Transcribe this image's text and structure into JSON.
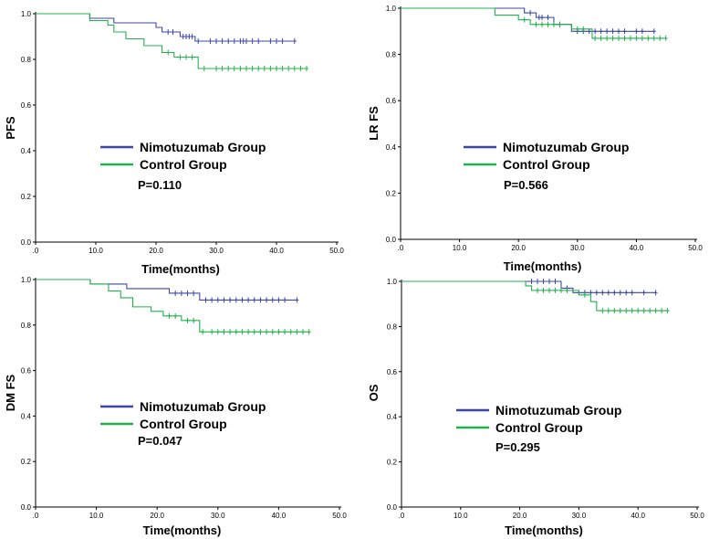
{
  "colors": {
    "nimotuzumab": "#3b47a8",
    "control": "#22b24c",
    "axis": "#000000"
  },
  "chart_data": [
    {
      "type": "line",
      "ylabel": "PFS",
      "xlabel": "Time(months)",
      "xlim": [
        0,
        50
      ],
      "ylim": [
        0,
        1
      ],
      "x_ticks": [
        ".0",
        "10.0",
        "20.0",
        "30.0",
        "40.0",
        "50.0"
      ],
      "y_ticks": [
        "0.0",
        "0.2",
        "0.4",
        "0.6",
        "0.8",
        "1.0"
      ],
      "legend": [
        "Nimotuzumab Group",
        "Control Group"
      ],
      "p_value": "P=0.110",
      "series": [
        {
          "name": "Nimotuzumab Group",
          "color_key": "nimotuzumab",
          "steps": [
            [
              0,
              1.0
            ],
            [
              9,
              0.98
            ],
            [
              13,
              0.96
            ],
            [
              20,
              0.94
            ],
            [
              21,
              0.92
            ],
            [
              24,
              0.9
            ],
            [
              26.5,
              0.88
            ]
          ],
          "end": 43,
          "censors": [
            [
              22,
              0.92
            ],
            [
              22.8,
              0.92
            ],
            [
              24.5,
              0.9
            ],
            [
              25,
              0.9
            ],
            [
              25.5,
              0.9
            ],
            [
              26,
              0.9
            ],
            [
              27,
              0.88
            ],
            [
              29,
              0.88
            ],
            [
              30,
              0.88
            ],
            [
              31,
              0.88
            ],
            [
              32,
              0.88
            ],
            [
              33,
              0.88
            ],
            [
              34,
              0.88
            ],
            [
              34.5,
              0.88
            ],
            [
              35,
              0.88
            ],
            [
              36,
              0.88
            ],
            [
              37,
              0.88
            ],
            [
              39,
              0.88
            ],
            [
              40,
              0.88
            ],
            [
              41,
              0.88
            ],
            [
              43,
              0.88
            ]
          ]
        },
        {
          "name": "Control Group",
          "color_key": "control",
          "steps": [
            [
              0,
              1.0
            ],
            [
              9,
              0.97
            ],
            [
              12,
              0.95
            ],
            [
              13,
              0.92
            ],
            [
              15,
              0.89
            ],
            [
              18,
              0.86
            ],
            [
              21,
              0.83
            ],
            [
              23,
              0.81
            ],
            [
              27,
              0.76
            ]
          ],
          "end": 45,
          "censors": [
            [
              22,
              0.83
            ],
            [
              24,
              0.81
            ],
            [
              25,
              0.81
            ],
            [
              26,
              0.81
            ],
            [
              28,
              0.76
            ],
            [
              30,
              0.76
            ],
            [
              31,
              0.76
            ],
            [
              32,
              0.76
            ],
            [
              33,
              0.76
            ],
            [
              34,
              0.76
            ],
            [
              35,
              0.76
            ],
            [
              36,
              0.76
            ],
            [
              37,
              0.76
            ],
            [
              38,
              0.76
            ],
            [
              39,
              0.76
            ],
            [
              40,
              0.76
            ],
            [
              41,
              0.76
            ],
            [
              42,
              0.76
            ],
            [
              43,
              0.76
            ],
            [
              44,
              0.76
            ],
            [
              45,
              0.76
            ]
          ]
        }
      ]
    },
    {
      "type": "line",
      "ylabel": "LR FS",
      "xlabel": "Time(months)",
      "xlim": [
        0,
        50
      ],
      "ylim": [
        0,
        1
      ],
      "x_ticks": [
        ".0",
        "10.0",
        "20.0",
        "30.0",
        "40.0",
        "50.0"
      ],
      "y_ticks": [
        "0.0",
        "0.2",
        "0.4",
        "0.6",
        "0.8",
        "1.0"
      ],
      "legend": [
        "Nimotuzumab Group",
        "Control Group"
      ],
      "p_value": "P=0.566",
      "series": [
        {
          "name": "Nimotuzumab Group",
          "color_key": "nimotuzumab",
          "steps": [
            [
              0,
              1.0
            ],
            [
              21,
              0.98
            ],
            [
              23,
              0.96
            ],
            [
              26,
              0.93
            ],
            [
              29,
              0.9
            ]
          ],
          "end": 43,
          "censors": [
            [
              22,
              0.98
            ],
            [
              23.5,
              0.96
            ],
            [
              24,
              0.96
            ],
            [
              25,
              0.96
            ],
            [
              27,
              0.93
            ],
            [
              30,
              0.9
            ],
            [
              31,
              0.9
            ],
            [
              32,
              0.9
            ],
            [
              33,
              0.9
            ],
            [
              34,
              0.9
            ],
            [
              35,
              0.9
            ],
            [
              36,
              0.9
            ],
            [
              37,
              0.9
            ],
            [
              38,
              0.9
            ],
            [
              40,
              0.9
            ],
            [
              41,
              0.9
            ],
            [
              43,
              0.9
            ]
          ]
        },
        {
          "name": "Control Group",
          "color_key": "control",
          "steps": [
            [
              0,
              1.0
            ],
            [
              16,
              0.97
            ],
            [
              20,
              0.95
            ],
            [
              22,
              0.93
            ],
            [
              29,
              0.91
            ],
            [
              32.5,
              0.87
            ]
          ],
          "end": 45,
          "censors": [
            [
              21,
              0.95
            ],
            [
              23,
              0.93
            ],
            [
              24,
              0.93
            ],
            [
              25,
              0.93
            ],
            [
              26,
              0.93
            ],
            [
              27,
              0.93
            ],
            [
              30,
              0.91
            ],
            [
              31,
              0.91
            ],
            [
              33,
              0.87
            ],
            [
              34,
              0.87
            ],
            [
              35,
              0.87
            ],
            [
              36,
              0.87
            ],
            [
              37,
              0.87
            ],
            [
              38,
              0.87
            ],
            [
              39,
              0.87
            ],
            [
              40,
              0.87
            ],
            [
              41,
              0.87
            ],
            [
              42,
              0.87
            ],
            [
              43,
              0.87
            ],
            [
              44,
              0.87
            ],
            [
              45,
              0.87
            ]
          ]
        }
      ]
    },
    {
      "type": "line",
      "ylabel": "DM FS",
      "xlabel": "Time(months)",
      "xlim": [
        0,
        50
      ],
      "ylim": [
        0,
        1
      ],
      "x_ticks": [
        ".0",
        "10.0",
        "20.0",
        "30.0",
        "40.0",
        "50.0"
      ],
      "y_ticks": [
        "0.0",
        "0.2",
        "0.4",
        "0.6",
        "0.8",
        "1.0"
      ],
      "legend": [
        "Nimotuzumab Group",
        "Control Group"
      ],
      "p_value": "P=0.047",
      "series": [
        {
          "name": "Nimotuzumab Group",
          "color_key": "nimotuzumab",
          "steps": [
            [
              0,
              1.0
            ],
            [
              9,
              0.98
            ],
            [
              15,
              0.96
            ],
            [
              22,
              0.94
            ],
            [
              27,
              0.91
            ]
          ],
          "end": 43,
          "censors": [
            [
              23,
              0.94
            ],
            [
              24,
              0.94
            ],
            [
              25,
              0.94
            ],
            [
              26,
              0.94
            ],
            [
              28,
              0.91
            ],
            [
              29,
              0.91
            ],
            [
              30,
              0.91
            ],
            [
              31,
              0.91
            ],
            [
              32,
              0.91
            ],
            [
              33,
              0.91
            ],
            [
              34,
              0.91
            ],
            [
              35,
              0.91
            ],
            [
              36,
              0.91
            ],
            [
              37,
              0.91
            ],
            [
              38,
              0.91
            ],
            [
              39,
              0.91
            ],
            [
              40,
              0.91
            ],
            [
              41,
              0.91
            ],
            [
              43,
              0.91
            ]
          ]
        },
        {
          "name": "Control Group",
          "color_key": "control",
          "steps": [
            [
              0,
              1.0
            ],
            [
              9,
              0.98
            ],
            [
              12,
              0.95
            ],
            [
              14,
              0.92
            ],
            [
              16,
              0.88
            ],
            [
              19,
              0.86
            ],
            [
              21,
              0.84
            ],
            [
              24,
              0.82
            ],
            [
              27,
              0.77
            ]
          ],
          "end": 45,
          "censors": [
            [
              22,
              0.84
            ],
            [
              23,
              0.84
            ],
            [
              25,
              0.82
            ],
            [
              26,
              0.82
            ],
            [
              27.5,
              0.77
            ],
            [
              29,
              0.77
            ],
            [
              30,
              0.77
            ],
            [
              31,
              0.77
            ],
            [
              32,
              0.77
            ],
            [
              33,
              0.77
            ],
            [
              34,
              0.77
            ],
            [
              35,
              0.77
            ],
            [
              36,
              0.77
            ],
            [
              37,
              0.77
            ],
            [
              38,
              0.77
            ],
            [
              39,
              0.77
            ],
            [
              40,
              0.77
            ],
            [
              41,
              0.77
            ],
            [
              42,
              0.77
            ],
            [
              43,
              0.77
            ],
            [
              44,
              0.77
            ],
            [
              45,
              0.77
            ]
          ]
        }
      ]
    },
    {
      "type": "line",
      "ylabel": "OS",
      "xlabel": "Time(months)",
      "xlim": [
        0,
        50
      ],
      "ylim": [
        0,
        1
      ],
      "x_ticks": [
        ".0",
        "10.0",
        "20.0",
        "30.0",
        "40.0",
        "50.0"
      ],
      "y_ticks": [
        "0.0",
        "0.2",
        "0.4",
        "0.6",
        "0.8",
        "1.0"
      ],
      "legend": [
        "Nimotuzumab Group",
        "Control Group"
      ],
      "p_value": "P=0.295",
      "series": [
        {
          "name": "Nimotuzumab Group",
          "color_key": "nimotuzumab",
          "steps": [
            [
              0,
              1.0
            ],
            [
              27,
              0.97
            ],
            [
              29,
              0.95
            ]
          ],
          "end": 43,
          "censors": [
            [
              22,
              1.0
            ],
            [
              23,
              1.0
            ],
            [
              24,
              1.0
            ],
            [
              25,
              1.0
            ],
            [
              26,
              1.0
            ],
            [
              28,
              0.97
            ],
            [
              30,
              0.95
            ],
            [
              31,
              0.95
            ],
            [
              32,
              0.95
            ],
            [
              33,
              0.95
            ],
            [
              34,
              0.95
            ],
            [
              35,
              0.95
            ],
            [
              36,
              0.95
            ],
            [
              37,
              0.95
            ],
            [
              38,
              0.95
            ],
            [
              39,
              0.95
            ],
            [
              41,
              0.95
            ],
            [
              43,
              0.95
            ]
          ]
        },
        {
          "name": "Control Group",
          "color_key": "control",
          "steps": [
            [
              0,
              1.0
            ],
            [
              21,
              0.98
            ],
            [
              22,
              0.96
            ],
            [
              30,
              0.94
            ],
            [
              32,
              0.91
            ],
            [
              33,
              0.87
            ]
          ],
          "end": 45,
          "censors": [
            [
              23,
              0.96
            ],
            [
              24,
              0.96
            ],
            [
              25,
              0.96
            ],
            [
              26,
              0.96
            ],
            [
              27,
              0.96
            ],
            [
              28,
              0.96
            ],
            [
              31,
              0.94
            ],
            [
              34,
              0.87
            ],
            [
              35,
              0.87
            ],
            [
              36,
              0.87
            ],
            [
              37,
              0.87
            ],
            [
              38,
              0.87
            ],
            [
              39,
              0.87
            ],
            [
              40,
              0.87
            ],
            [
              41,
              0.87
            ],
            [
              42,
              0.87
            ],
            [
              43,
              0.87
            ],
            [
              44,
              0.87
            ],
            [
              45,
              0.87
            ]
          ]
        }
      ]
    }
  ]
}
